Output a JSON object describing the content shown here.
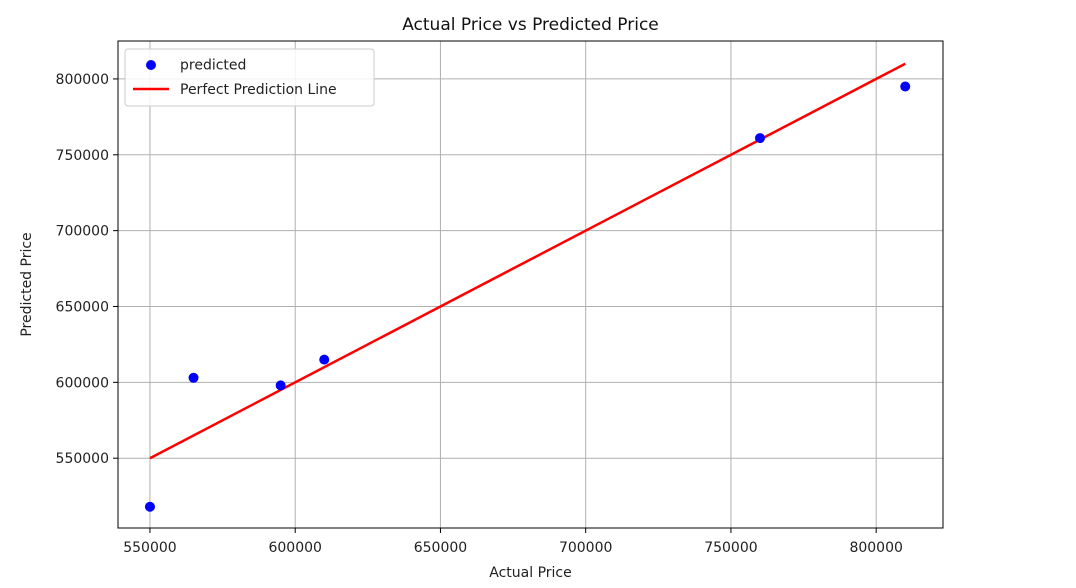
{
  "chart_data": {
    "type": "scatter",
    "title": "Actual Price vs Predicted Price",
    "xlabel": "Actual Price",
    "ylabel": "Predicted Price",
    "xlim": [
      539000,
      823000
    ],
    "ylim": [
      504000,
      825000
    ],
    "xticks": [
      550000,
      600000,
      650000,
      700000,
      750000,
      800000
    ],
    "yticks": [
      550000,
      600000,
      650000,
      700000,
      750000,
      800000
    ],
    "grid": true,
    "legend_position": "top-left",
    "series": [
      {
        "name": "predicted",
        "kind": "scatter",
        "color": "#0000ff",
        "points": [
          {
            "x": 550000,
            "y": 518000
          },
          {
            "x": 565000,
            "y": 603000
          },
          {
            "x": 595000,
            "y": 598000
          },
          {
            "x": 610000,
            "y": 615000
          },
          {
            "x": 760000,
            "y": 761000
          },
          {
            "x": 810000,
            "y": 795000
          }
        ]
      },
      {
        "name": "Perfect Prediction Line",
        "kind": "line",
        "color": "#ff0000",
        "points": [
          {
            "x": 550000,
            "y": 550000
          },
          {
            "x": 810000,
            "y": 810000
          }
        ]
      }
    ]
  }
}
